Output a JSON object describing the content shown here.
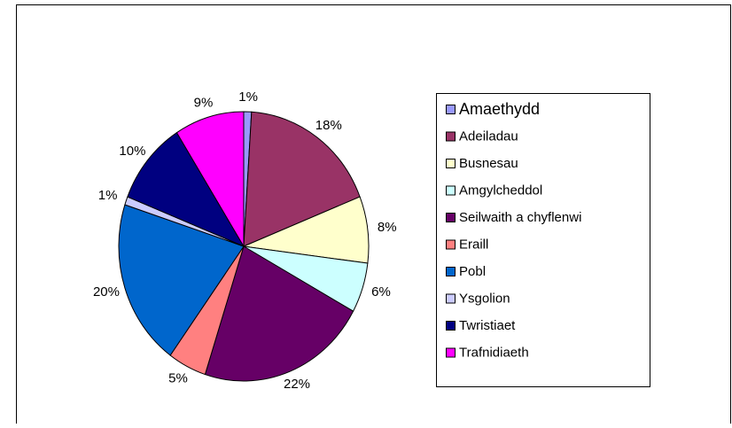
{
  "chart_data": {
    "type": "pie",
    "categories": [
      "Amaethydd",
      "Adeiladau",
      "Busnesau",
      "Amgylcheddol",
      "Seilwaith a chyflenwi",
      "Eraill",
      "Pobl",
      "Ysgolion",
      "Twristiaet",
      "Trafnidiaeth"
    ],
    "values": [
      1,
      18,
      8,
      6,
      22,
      5,
      20,
      1,
      10,
      9
    ],
    "value_labels": [
      "1%",
      "18%",
      "8%",
      "6%",
      "22%",
      "5%",
      "20%",
      "1%",
      "10%",
      "9%"
    ],
    "colors": [
      "#9999ff",
      "#993366",
      "#ffffcc",
      "#ccffff",
      "#660066",
      "#ff8080",
      "#0066cc",
      "#ccccff",
      "#000080",
      "#ff00ff"
    ],
    "legend": "right"
  }
}
